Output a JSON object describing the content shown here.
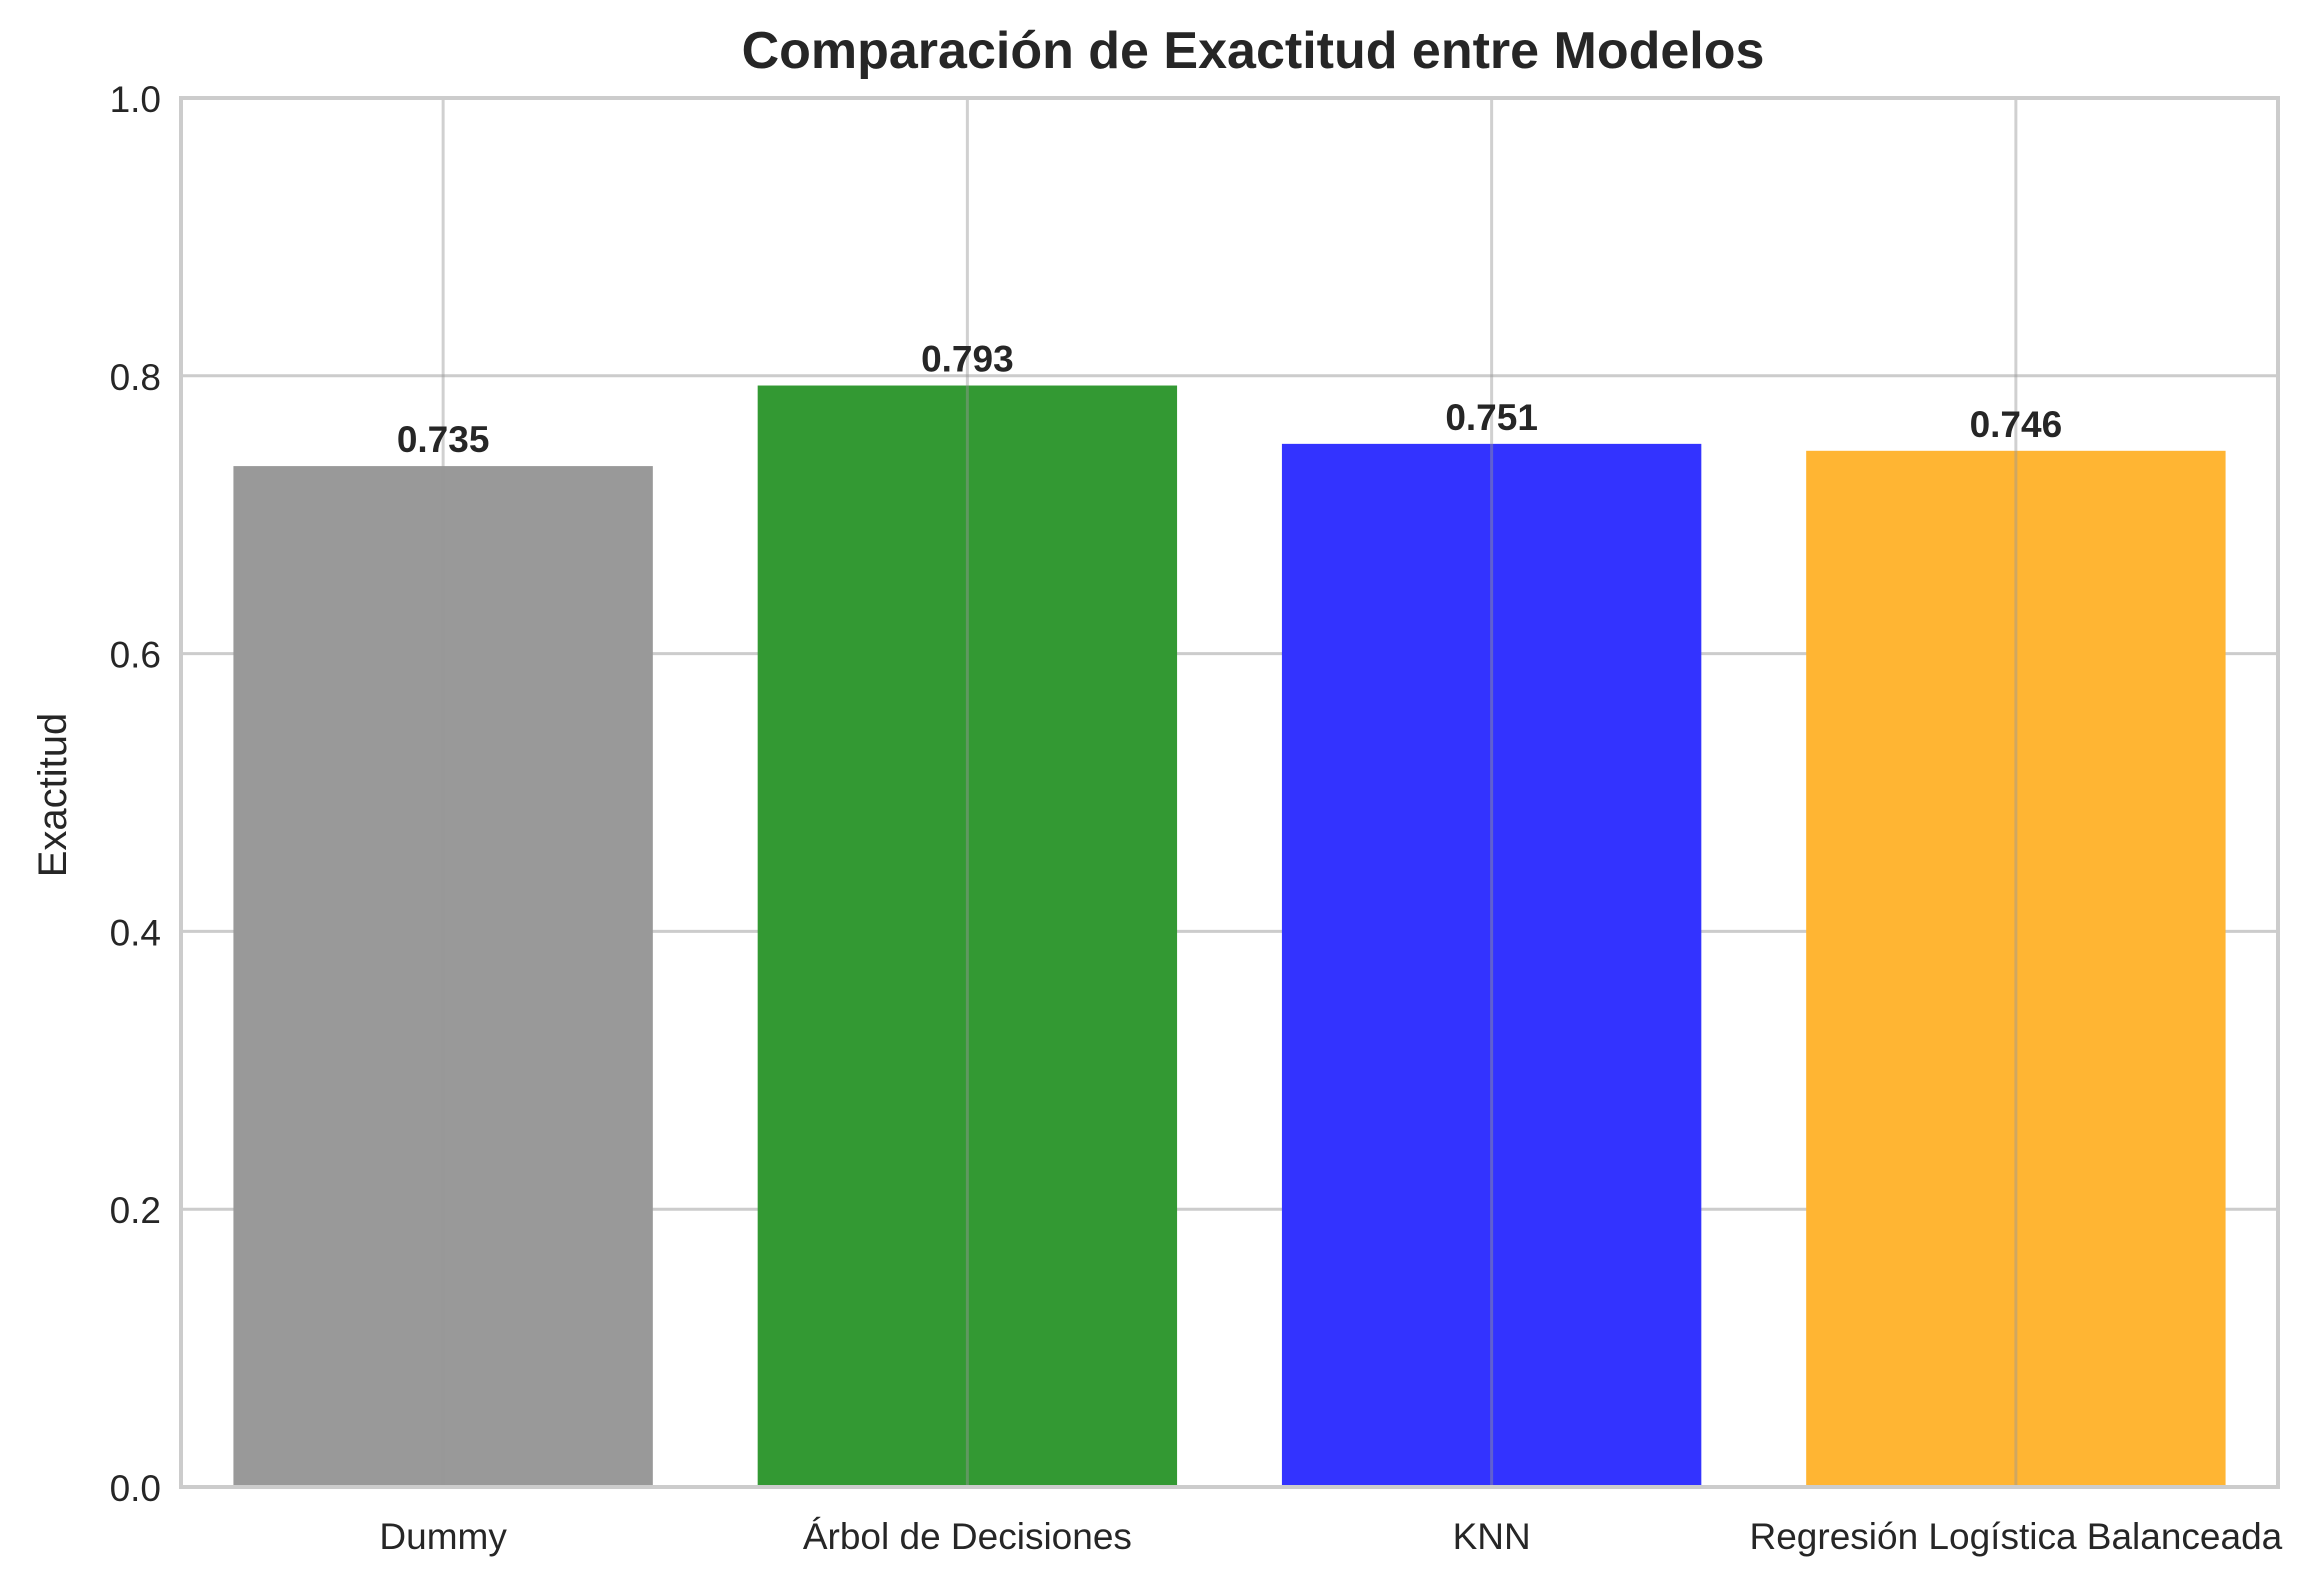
{
  "chart_data": {
    "type": "bar",
    "title": "Comparación de Exactitud entre Modelos",
    "xlabel": "",
    "ylabel": "Exactitud",
    "ylim": [
      0,
      1.0
    ],
    "yticks": [
      "0.0",
      "0.2",
      "0.4",
      "0.6",
      "0.8",
      "1.0"
    ],
    "grid": true,
    "categories": [
      "Dummy",
      "Árbol de Decisiones",
      "KNN",
      "Regresión Logística Balanceada"
    ],
    "values": [
      0.735,
      0.793,
      0.751,
      0.746
    ],
    "value_labels": [
      "0.735",
      "0.793",
      "0.751",
      "0.746"
    ],
    "colors": [
      "#999999",
      "#339933",
      "#3333ff",
      "#ffb533"
    ]
  }
}
